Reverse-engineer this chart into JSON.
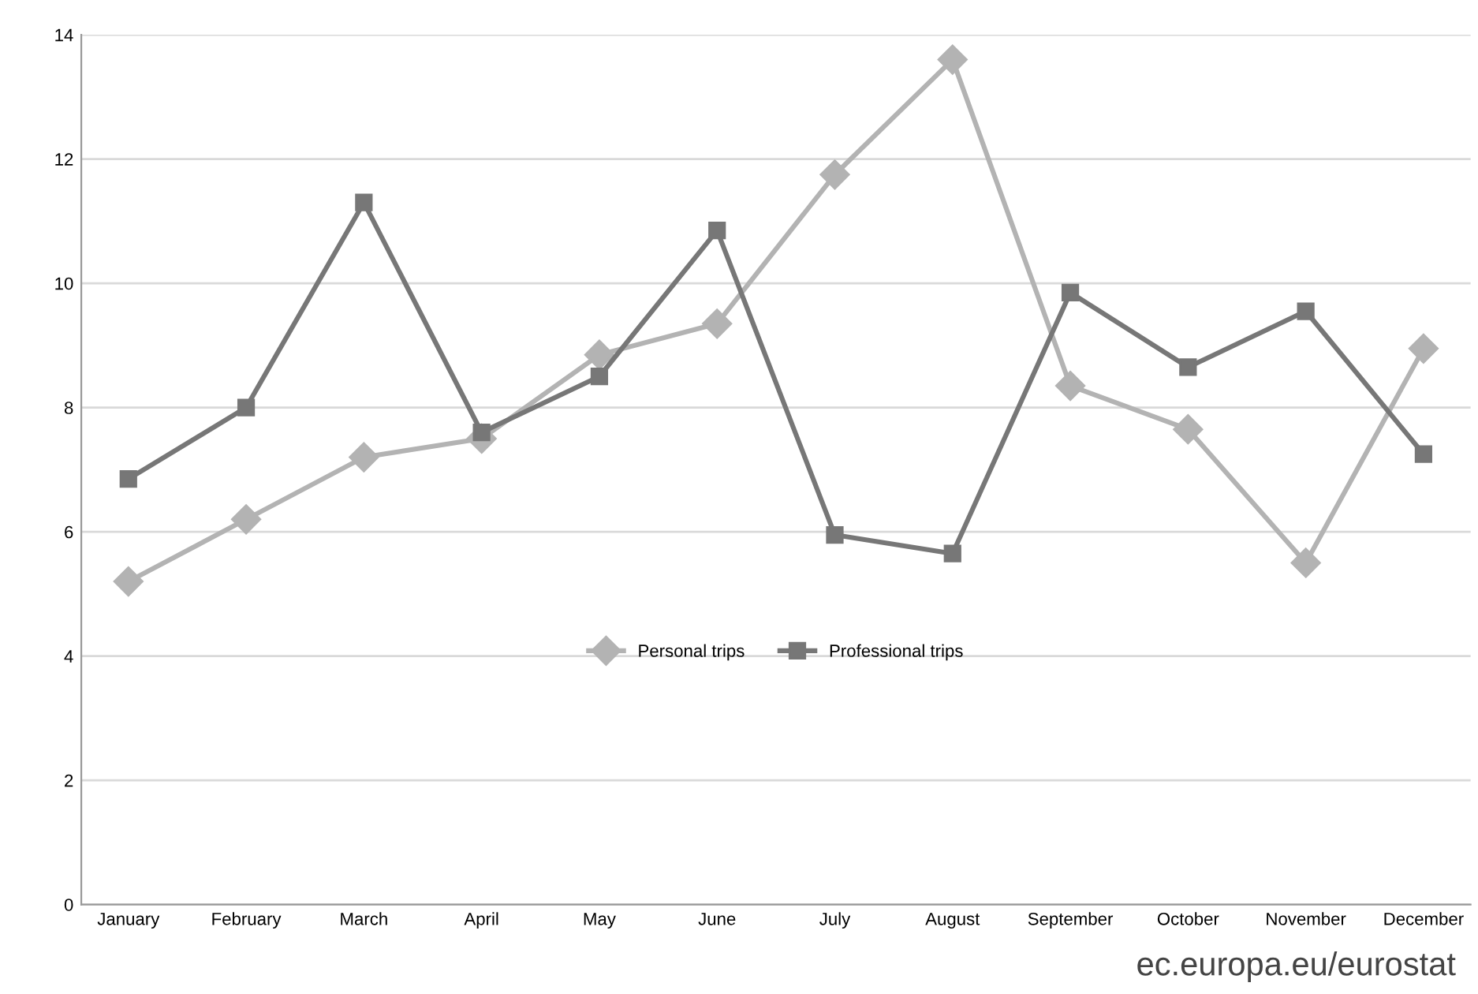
{
  "chart_data": {
    "type": "line",
    "categories": [
      "January",
      "February",
      "March",
      "April",
      "May",
      "June",
      "July",
      "August",
      "September",
      "October",
      "November",
      "December"
    ],
    "series": [
      {
        "name": "Personal trips",
        "color": "#b3b3b3",
        "marker": "diamond",
        "values": [
          5.2,
          6.2,
          7.2,
          7.5,
          8.85,
          9.35,
          11.75,
          13.6,
          8.35,
          7.65,
          5.5,
          8.95
        ]
      },
      {
        "name": "Professional trips",
        "color": "#777777",
        "marker": "square",
        "values": [
          6.85,
          8.0,
          11.3,
          7.6,
          8.5,
          10.85,
          5.95,
          5.65,
          9.85,
          8.65,
          9.55,
          7.25
        ]
      }
    ],
    "ylim": [
      0,
      14
    ],
    "yticks": [
      0,
      2,
      4,
      6,
      8,
      10,
      12,
      14
    ],
    "grid": "y",
    "legend": "bottom",
    "line_style": "solid",
    "annotations": [
      "ec.europa.eu/eurostat"
    ]
  }
}
